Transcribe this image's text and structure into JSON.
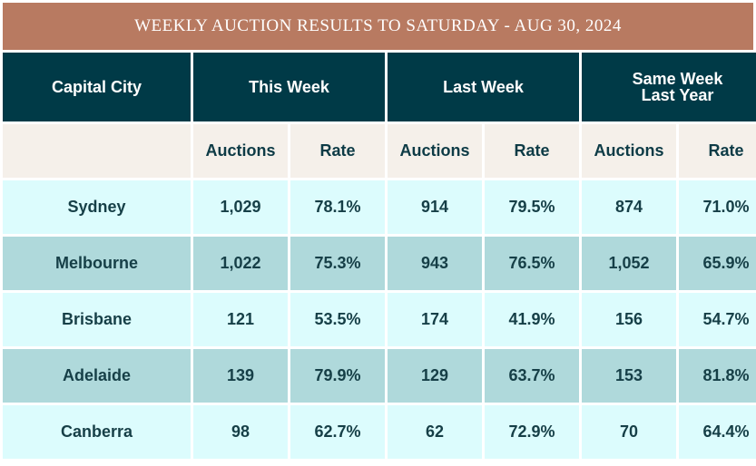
{
  "title": "WEEKLY AUCTION RESULTS TO SATURDAY - AUG 30, 2024",
  "colors": {
    "title_bg": "#b87a61",
    "header_bg": "#003a47",
    "subheader_bg": "#f5f0ea",
    "row_light": "#dcfcfd",
    "row_dark": "#afd9db",
    "text": "#163f47"
  },
  "chart_data": {
    "type": "table",
    "title": "WEEKLY AUCTION RESULTS TO SATURDAY - AUG 30, 2024",
    "group_headers": [
      "Capital City",
      "This Week",
      "Last Week",
      "Same Week Last Year"
    ],
    "sub_headers": [
      "Auctions",
      "Rate",
      "Auctions",
      "Rate",
      "Auctions",
      "Rate"
    ],
    "rows": [
      {
        "city": "Sydney",
        "cells": [
          "1,029",
          "78.1%",
          "914",
          "79.5%",
          "874",
          "71.0%"
        ]
      },
      {
        "city": "Melbourne",
        "cells": [
          "1,022",
          "75.3%",
          "943",
          "76.5%",
          "1,052",
          "65.9%"
        ]
      },
      {
        "city": "Brisbane",
        "cells": [
          "121",
          "53.5%",
          "174",
          "41.9%",
          "156",
          "54.7%"
        ]
      },
      {
        "city": "Adelaide",
        "cells": [
          "139",
          "79.9%",
          "129",
          "63.7%",
          "153",
          "81.8%"
        ]
      },
      {
        "city": "Canberra",
        "cells": [
          "98",
          "62.7%",
          "62",
          "72.9%",
          "70",
          "64.4%"
        ]
      }
    ]
  }
}
